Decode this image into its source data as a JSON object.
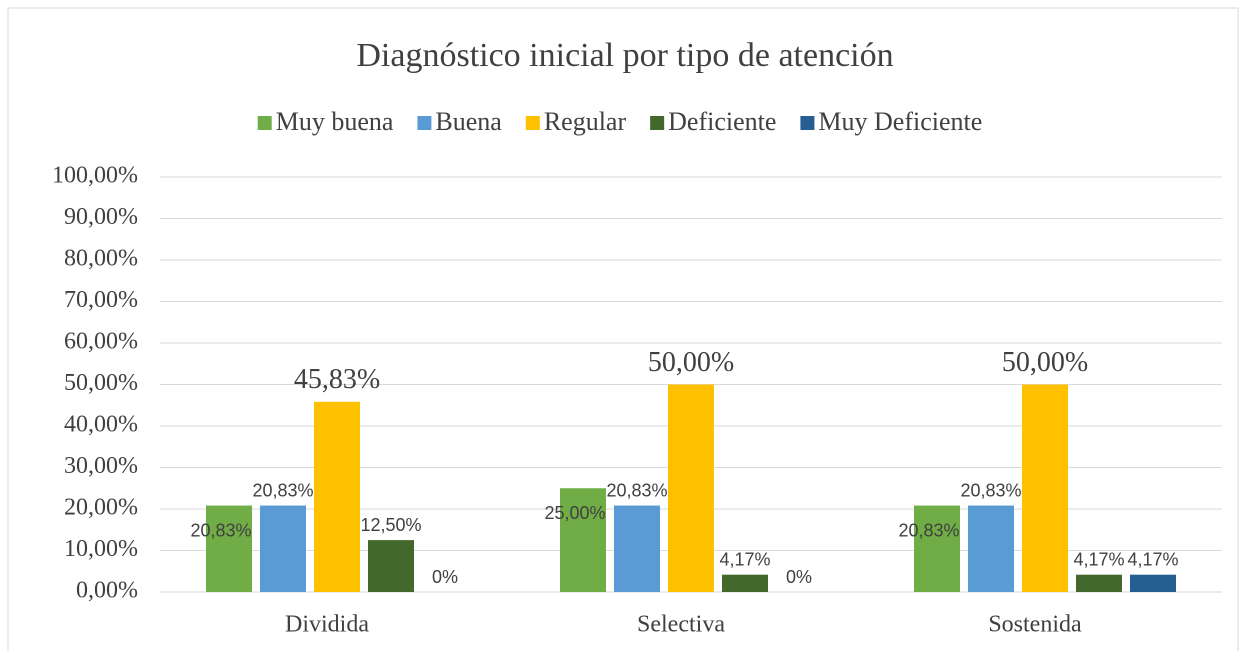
{
  "chart_data": {
    "type": "bar",
    "title": "Diagnóstico inicial por tipo de atención",
    "categories": [
      "Dividida",
      "Selectiva",
      "Sostenida"
    ],
    "series": [
      {
        "name": "Muy buena",
        "color": "#70ad47",
        "values": [
          20.83,
          25,
          20.83
        ],
        "value_labels": [
          "20,83%",
          "25,00%",
          "20,83%"
        ]
      },
      {
        "name": "Buena",
        "color": "#5b9bd5",
        "values": [
          20.83,
          20.83,
          20.83
        ],
        "value_labels": [
          "20,83%",
          "20,83%",
          "20,83%"
        ]
      },
      {
        "name": "Regular",
        "color": "#ffc000",
        "values": [
          45.83,
          50,
          50
        ],
        "value_labels": [
          "45,83%",
          "50,00%",
          "50,00%"
        ]
      },
      {
        "name": "Deficiente",
        "color": "#43682b",
        "values": [
          12.5,
          4.17,
          4.17
        ],
        "value_labels": [
          "12,50%",
          "4,17%",
          "4,17%"
        ]
      },
      {
        "name": "Muy Deficiente",
        "color": "#255e91",
        "values": [
          0,
          0,
          4.17
        ],
        "value_labels": [
          "0%",
          "0%",
          "4,17%"
        ]
      }
    ],
    "ylim": [
      0,
      100
    ],
    "yticks": [
      {
        "value": 0,
        "label": "0,00%"
      },
      {
        "value": 10,
        "label": "10,00%"
      },
      {
        "value": 20,
        "label": "20,00%"
      },
      {
        "value": 30,
        "label": "30,00%"
      },
      {
        "value": 40,
        "label": "40,00%"
      },
      {
        "value": 50,
        "label": "50,00%"
      },
      {
        "value": 60,
        "label": "60,00%"
      },
      {
        "value": 70,
        "label": "70,00%"
      },
      {
        "value": 80,
        "label": "80,00%"
      },
      {
        "value": 90,
        "label": "90,00%"
      },
      {
        "value": 100,
        "label": "100,00%"
      }
    ],
    "grid": true,
    "legend": "top"
  }
}
